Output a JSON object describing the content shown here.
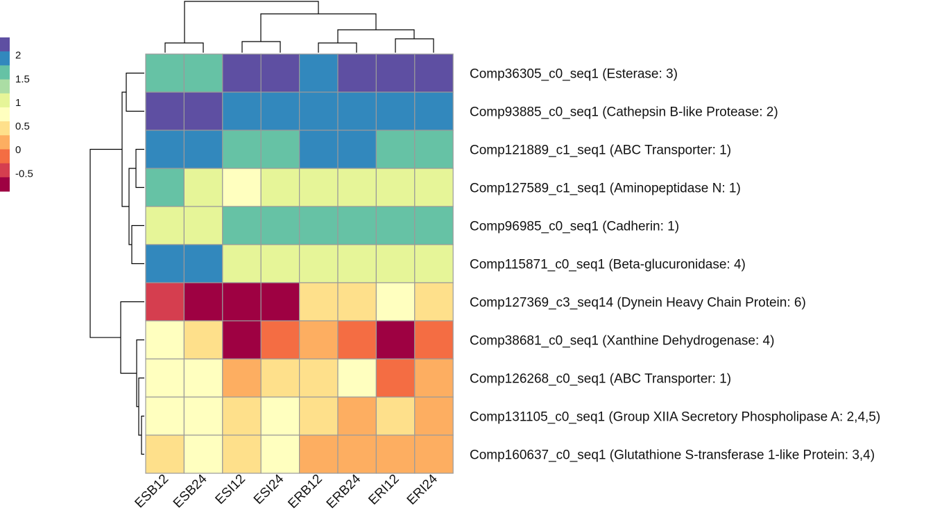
{
  "chart_data": {
    "type": "heatmap",
    "title": "",
    "columns": [
      "ESB12",
      "ESB24",
      "ESI12",
      "ESI24",
      "ERB12",
      "ERB24",
      "ERI12",
      "ERI24"
    ],
    "rows": [
      "Comp36305_c0_seq1 (Esterase: 3)",
      "Comp93885_c0_seq1 (Cathepsin B-like Protease: 2)",
      "Comp121889_c1_seq1 (ABC Transporter: 1)",
      "Comp127589_c1_seq1 (Aminopeptidase N: 1)",
      "Comp96985_c0_seq1 (Cadherin: 1)",
      "Comp115871_c0_seq1 (Beta-glucuronidase: 4)",
      "Comp127369_c3_seq14 (Dynein Heavy Chain Protein: 6)",
      "Comp38681_c0_seq1 (Xanthine Dehydrogenase: 4)",
      "Comp126268_c0_seq1 (ABC Transporter: 1)",
      "Comp131105_c0_seq1 (Group XIIA Secretory Phospholipase A: 2,4,5)",
      "Comp160637_c0_seq1 (Glutathione S-transferase 1-like Protein: 3,4)"
    ],
    "values": [
      [
        1.55,
        1.55,
        2.25,
        2.25,
        1.85,
        2.25,
        2.25,
        2.25
      ],
      [
        2.25,
        2.25,
        1.85,
        1.85,
        1.85,
        1.85,
        1.85,
        1.85
      ],
      [
        1.85,
        1.85,
        1.55,
        1.55,
        1.85,
        1.85,
        1.55,
        1.55
      ],
      [
        1.55,
        1.15,
        0.65,
        0.9,
        1.15,
        1.15,
        0.9,
        0.9
      ],
      [
        1.15,
        1.15,
        1.55,
        1.55,
        1.55,
        1.55,
        1.55,
        1.55
      ],
      [
        1.85,
        1.85,
        1.15,
        1.15,
        1.15,
        1.15,
        0.9,
        1.15
      ],
      [
        -0.45,
        -0.75,
        -0.75,
        -0.75,
        0.4,
        0.4,
        0.65,
        0.4
      ],
      [
        0.65,
        0.4,
        -0.75,
        -0.1,
        0.2,
        -0.05,
        -0.75,
        -0.1
      ],
      [
        0.65,
        0.65,
        0.2,
        0.4,
        0.4,
        0.65,
        -0.05,
        0.2
      ],
      [
        0.65,
        0.65,
        0.4,
        0.65,
        0.4,
        0.2,
        0.4,
        0.2
      ],
      [
        0.4,
        0.65,
        0.4,
        0.65,
        0.2,
        0.2,
        0.2,
        0.2
      ]
    ],
    "legend": {
      "position": "top-left",
      "ticks": [
        {
          "label": "2",
          "value": 2
        },
        {
          "label": "1.5",
          "value": 1.5
        },
        {
          "label": "1",
          "value": 1
        },
        {
          "label": "0.5",
          "value": 0.5
        },
        {
          "label": "0",
          "value": 0
        },
        {
          "label": "-0.5",
          "value": -0.5
        }
      ],
      "range": [
        -0.875,
        2.375
      ],
      "colors": [
        "#9E0142",
        "#D53E4F",
        "#F46D43",
        "#FDAE61",
        "#FEE08B",
        "#FFFFBF",
        "#E6F598",
        "#ABDDA4",
        "#66C2A5",
        "#3288BD",
        "#5E4FA2"
      ]
    },
    "dendrogram_colors": "#000000",
    "cell_border_color": "#9a9a9a"
  }
}
